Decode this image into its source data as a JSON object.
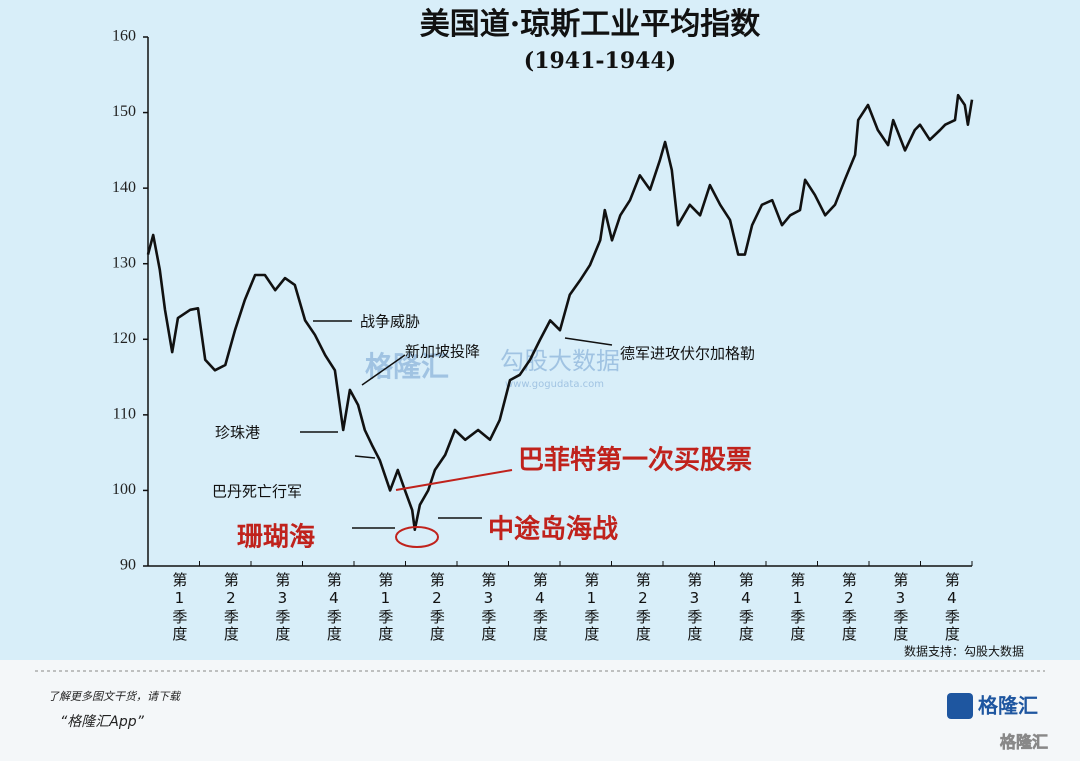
{
  "chart_data": {
    "type": "line",
    "title": "美国道·琼斯工业平均指数",
    "subtitle": "(1941-1944)",
    "source": "数据支持：勾股大数据",
    "categories": [
      "第1季度",
      "第2季度",
      "第3季度",
      "第4季度",
      "第1季度",
      "第2季度",
      "第3季度",
      "第4季度",
      "第1季度",
      "第2季度",
      "第3季度",
      "第4季度",
      "第1季度",
      "第2季度",
      "第3季度",
      "第4季度"
    ],
    "xlim": [
      0,
      16
    ],
    "ylim": [
      90,
      160
    ],
    "yticks": [
      90,
      100,
      110,
      120,
      130,
      140,
      150,
      160
    ],
    "series": [
      {
        "color": "#111111",
        "x": [
          0,
          0.1,
          0.23,
          0.33,
          0.47,
          0.58,
          0.82,
          0.97,
          1.11,
          1.3,
          1.5,
          1.69,
          1.88,
          2.08,
          2.27,
          2.47,
          2.66,
          2.85,
          3.05,
          3.24,
          3.44,
          3.63,
          3.79,
          3.92,
          4.08,
          4.21,
          4.35,
          4.5,
          4.7,
          4.85,
          4.99,
          5.13,
          5.18,
          5.28,
          5.44,
          5.57,
          5.77,
          5.96,
          6.16,
          6.41,
          6.64,
          6.83,
          7.03,
          7.22,
          7.42,
          7.61,
          7.81,
          8,
          8.19,
          8.39,
          8.58,
          8.78,
          8.87,
          9.01,
          9.17,
          9.36,
          9.55,
          9.75,
          9.94,
          10.04,
          10.17,
          10.29,
          10.52,
          10.72,
          10.91,
          11.11,
          11.3,
          11.46,
          11.59,
          11.73,
          11.92,
          12.12,
          12.31,
          12.47,
          12.66,
          12.76,
          12.95,
          13.15,
          13.34,
          13.53,
          13.73,
          13.79,
          13.98,
          14.17,
          14.37,
          14.47,
          14.7,
          14.89,
          14.99,
          15.18,
          15.38,
          15.48,
          15.67,
          15.73,
          15.86,
          15.92,
          16
        ],
        "values": [
          131.2,
          133.8,
          129.2,
          123.9,
          118.3,
          122.8,
          123.9,
          124.1,
          117.3,
          115.9,
          116.6,
          121.2,
          125.2,
          128.5,
          128.5,
          126.5,
          128.1,
          127.2,
          122.5,
          120.6,
          117.9,
          115.9,
          108,
          113.3,
          111.3,
          108,
          106,
          104,
          100,
          102.7,
          100,
          97.4,
          94.8,
          98.1,
          100,
          102.7,
          104.7,
          108,
          106.7,
          108,
          106.7,
          109.3,
          114.6,
          115.3,
          117.3,
          119.9,
          122.5,
          121.2,
          125.9,
          127.8,
          129.8,
          133.1,
          137.1,
          133.1,
          136.4,
          138.4,
          141.7,
          139.8,
          143.7,
          146.1,
          142.4,
          135.1,
          137.8,
          136.4,
          140.4,
          137.8,
          135.8,
          131.2,
          131.2,
          135.1,
          137.8,
          138.4,
          135.1,
          136.4,
          137.1,
          141.1,
          139.1,
          136.4,
          137.8,
          141.1,
          144.4,
          149,
          151,
          147.7,
          145.7,
          149,
          145,
          147.7,
          148.4,
          146.4,
          147.7,
          148.4,
          149,
          152.3,
          151,
          148.4,
          151.7
        ]
      }
    ],
    "annotations": [
      "战争威胁",
      "新加坡投降",
      "珍珠港",
      "巴丹死亡行军",
      "珊瑚海",
      "德军进攻伏尔加格勒",
      "巴菲特第一次买股票",
      "中途岛海战"
    ]
  },
  "watermark": {
    "brand": "格隆汇",
    "partner": "勾股大数据",
    "url": "www.gogudata.com"
  },
  "footer": {
    "line1": "了解更多图文干货，请下载",
    "line2": "“格隆汇App”",
    "logo": "格隆汇",
    "corner": "格隆汇"
  }
}
